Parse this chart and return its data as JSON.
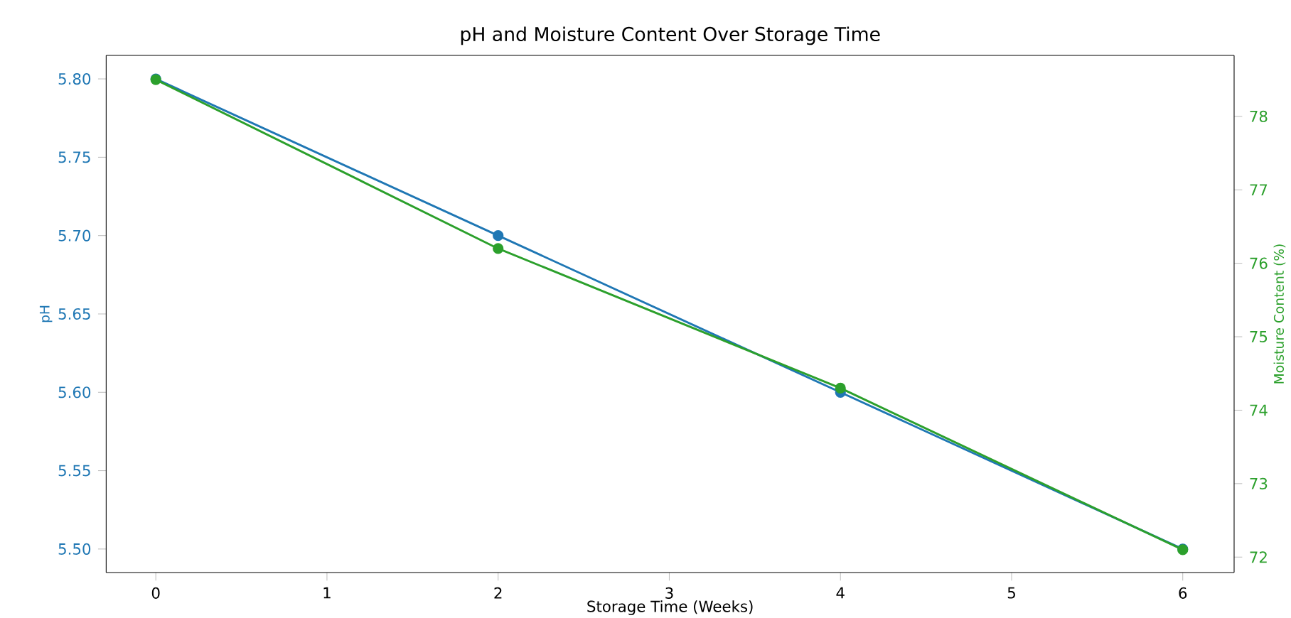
{
  "chart_data": {
    "type": "line",
    "title": "pH and Moisture Content Over Storage Time",
    "xlabel": "Storage Time (Weeks)",
    "ylabel": "pH",
    "y2label": "Moisture Content (%)",
    "x": [
      0,
      2,
      4,
      6
    ],
    "series": [
      {
        "color": "#1f77b4",
        "values": [
          5.8,
          5.7,
          5.6,
          5.5
        ]
      },
      {
        "color": "#2ca02c",
        "values": [
          78.5,
          76.2,
          74.3,
          72.1
        ],
        "axis": "y2"
      }
    ],
    "xlim": [
      -0.29,
      6.3
    ],
    "xticks": [
      0,
      1,
      2,
      3,
      4,
      5,
      6
    ],
    "ylim": [
      5.485,
      5.815
    ],
    "yticks": [
      {
        "value": 5.5,
        "label": "5.50"
      },
      {
        "value": 5.55,
        "label": "5.55"
      },
      {
        "value": 5.6,
        "label": "5.60"
      },
      {
        "value": 5.65,
        "label": "5.65"
      },
      {
        "value": 5.7,
        "label": "5.70"
      },
      {
        "value": 5.75,
        "label": "5.75"
      },
      {
        "value": 5.8,
        "label": "5.80"
      }
    ],
    "y2lim": [
      71.79,
      78.83
    ],
    "y2ticks": [
      72,
      73,
      74,
      75,
      76,
      77,
      78
    ],
    "marker": "circle",
    "line_style": "solid",
    "grid": false
  }
}
